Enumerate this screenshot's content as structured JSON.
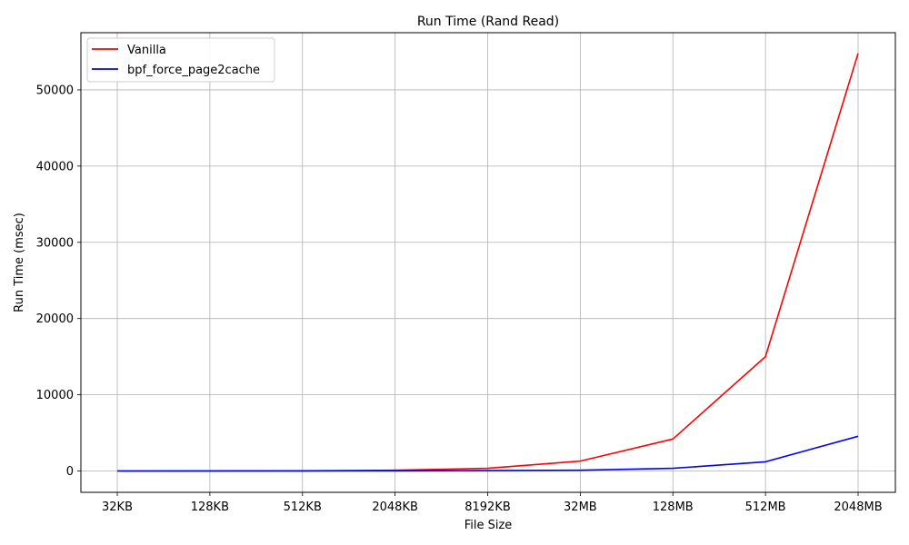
{
  "chart_data": {
    "type": "line",
    "title": "Run Time (Rand Read)",
    "xlabel": "File Size",
    "ylabel": "Run Time (msec)",
    "categories": [
      "32KB",
      "128KB",
      "512KB",
      "2048KB",
      "8192KB",
      "32MB",
      "128MB",
      "512MB",
      "2048MB"
    ],
    "yticks": [
      0,
      10000,
      20000,
      30000,
      40000,
      50000
    ],
    "ylim": [
      -2800,
      57500
    ],
    "grid": true,
    "legend_position": "top-left",
    "series": [
      {
        "name": "Vanilla",
        "color": "#ff0000",
        "values": [
          5,
          10,
          30,
          100,
          350,
          1300,
          4200,
          15000,
          54800
        ]
      },
      {
        "name": "bpf_force_page2cache",
        "color": "#0000ff",
        "values": [
          2,
          4,
          10,
          25,
          50,
          100,
          350,
          1200,
          4550
        ]
      }
    ]
  }
}
